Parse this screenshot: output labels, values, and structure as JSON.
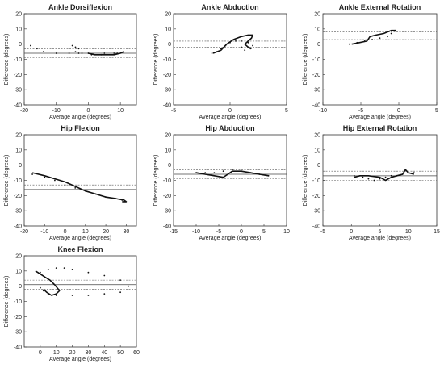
{
  "chart_data": [
    {
      "type": "scatter",
      "title": "Ankle Dorsiflexion",
      "xlabel": "Average angle (degrees)",
      "ylabel": "Difference (degrees)",
      "xlim": [
        -20,
        15
      ],
      "ylim": [
        -40,
        20
      ],
      "xticks": [
        -20,
        -10,
        0,
        10
      ],
      "yticks": [
        -40,
        -30,
        -20,
        -10,
        0,
        10,
        20
      ],
      "xticklabels": [
        "-20",
        "-10",
        "0",
        "10"
      ],
      "yticklabels": [
        "-40",
        "-30",
        "-20",
        "-10",
        "0",
        "10",
        "20"
      ],
      "reference_lines": {
        "solid": [
          -6
        ],
        "dashed": [
          -3,
          -9
        ]
      },
      "series": [
        {
          "style": "dotted",
          "points": [
            [
              -18,
              -1
            ],
            [
              -16,
              -3
            ],
            [
              -14,
              -5
            ],
            [
              -10,
              -6
            ],
            [
              -6,
              -6
            ],
            [
              -3,
              -6
            ],
            [
              0,
              -6
            ],
            [
              5,
              -6
            ],
            [
              9,
              -6
            ]
          ]
        },
        {
          "style": "dotted",
          "points": [
            [
              -5,
              -1
            ],
            [
              -4,
              -2
            ],
            [
              -3,
              -3
            ],
            [
              -4,
              -5
            ],
            [
              -2,
              -6
            ],
            [
              1,
              -7
            ],
            [
              4,
              -7
            ],
            [
              8,
              -6
            ]
          ]
        },
        {
          "style": "solid",
          "points": [
            [
              0,
              -6
            ],
            [
              2,
              -7
            ],
            [
              5,
              -7
            ],
            [
              8,
              -7
            ],
            [
              10,
              -6
            ],
            [
              11,
              -5
            ]
          ]
        }
      ]
    },
    {
      "type": "scatter",
      "title": "Ankle Abduction",
      "xlabel": "Average angle (degrees)",
      "ylabel": "Difference (degrees)",
      "xlim": [
        -5,
        5
      ],
      "ylim": [
        -40,
        20
      ],
      "xticks": [
        -5,
        0,
        5
      ],
      "yticks": [
        -40,
        -30,
        -20,
        -10,
        0,
        10,
        20
      ],
      "xticklabels": [
        "-5",
        "0",
        "5"
      ],
      "yticklabels": [
        "-40",
        "-30",
        "-20",
        "-10",
        "0",
        "10",
        "20"
      ],
      "reference_lines": {
        "solid": [
          0
        ],
        "dashed": [
          2,
          -2
        ]
      },
      "series": [
        {
          "style": "dotted",
          "points": [
            [
              -1.6,
              -6
            ],
            [
              -1.2,
              -5
            ],
            [
              -0.8,
              -3
            ],
            [
              -0.4,
              -1
            ],
            [
              0,
              1
            ],
            [
              0.5,
              2
            ],
            [
              1,
              2
            ],
            [
              1.6,
              1
            ],
            [
              2,
              -1
            ],
            [
              1.8,
              -3
            ],
            [
              1.3,
              -4
            ],
            [
              1,
              -2
            ]
          ]
        },
        {
          "style": "solid",
          "points": [
            [
              -1.5,
              -6
            ],
            [
              -0.8,
              -4
            ],
            [
              -0.3,
              0
            ],
            [
              0.3,
              3
            ],
            [
              1,
              5
            ],
            [
              1.6,
              6
            ],
            [
              2,
              6
            ],
            [
              1.9,
              4
            ],
            [
              1.6,
              2
            ],
            [
              1.3,
              0
            ],
            [
              1.6,
              -2
            ],
            [
              1.9,
              -3
            ]
          ]
        }
      ]
    },
    {
      "type": "scatter",
      "title": "Ankle External Rotation",
      "xlabel": "Average angle (degrees)",
      "ylabel": "Difference (degrees)",
      "xlim": [
        -10,
        5
      ],
      "ylim": [
        -40,
        20
      ],
      "xticks": [
        -10,
        -5,
        0,
        5
      ],
      "yticks": [
        -40,
        -30,
        -20,
        -10,
        0,
        10,
        20
      ],
      "xticklabels": [
        "-10",
        "-5",
        "0",
        "5"
      ],
      "yticklabels": [
        "-40",
        "-30",
        "-20",
        "-10",
        "0",
        "10",
        "20"
      ],
      "reference_lines": {
        "solid": [
          5.5
        ],
        "dashed": [
          8,
          3
        ]
      },
      "series": [
        {
          "style": "dotted",
          "points": [
            [
              -6.5,
              0
            ],
            [
              -5.5,
              1
            ],
            [
              -4.5,
              2
            ],
            [
              -3.5,
              3
            ],
            [
              -2.5,
              4
            ],
            [
              -1.5,
              5
            ],
            [
              -1,
              7
            ],
            [
              -0.5,
              9
            ]
          ]
        },
        {
          "style": "solid",
          "points": [
            [
              -6.2,
              0
            ],
            [
              -5.2,
              1
            ],
            [
              -4.2,
              2
            ],
            [
              -3.8,
              5
            ],
            [
              -3,
              6
            ],
            [
              -2,
              7
            ],
            [
              -1,
              9
            ],
            [
              -0.5,
              9
            ]
          ]
        }
      ]
    },
    {
      "type": "scatter",
      "title": "Hip Flexion",
      "xlabel": "Average angle (degrees)",
      "ylabel": "Difference (degrees)",
      "xlim": [
        -20,
        35
      ],
      "ylim": [
        -40,
        20
      ],
      "xticks": [
        -20,
        -10,
        0,
        10,
        20,
        30
      ],
      "yticks": [
        -40,
        -30,
        -20,
        -10,
        0,
        10,
        20
      ],
      "xticklabels": [
        "-20",
        "-10",
        "0",
        "10",
        "20",
        "30"
      ],
      "yticklabels": [
        "-40",
        "-30",
        "-20",
        "-10",
        "0",
        "10",
        "20"
      ],
      "reference_lines": {
        "solid": [
          -16
        ],
        "dashed": [
          -13,
          -19
        ]
      },
      "series": [
        {
          "style": "dotted",
          "points": [
            [
              -16,
              -6
            ],
            [
              -10,
              -8
            ],
            [
              -5,
              -10
            ],
            [
              0,
              -13
            ],
            [
              5,
              -15
            ],
            [
              10,
              -17
            ],
            [
              15,
              -19
            ],
            [
              20,
              -21
            ],
            [
              25,
              -22
            ],
            [
              28,
              -23
            ]
          ]
        },
        {
          "style": "solid",
          "points": [
            [
              -16,
              -5
            ],
            [
              -10,
              -7
            ],
            [
              -5,
              -9
            ],
            [
              0,
              -11
            ],
            [
              5,
              -14
            ],
            [
              10,
              -17
            ],
            [
              15,
              -19
            ],
            [
              20,
              -21
            ],
            [
              25,
              -22
            ],
            [
              29,
              -23
            ],
            [
              30,
              -24
            ],
            [
              28,
              -24
            ]
          ]
        }
      ]
    },
    {
      "type": "scatter",
      "title": "Hip Abduction",
      "xlabel": "Average angle (degrees)",
      "ylabel": "Difference (degrees)",
      "xlim": [
        -15,
        10
      ],
      "ylim": [
        -40,
        20
      ],
      "xticks": [
        -15,
        -10,
        -5,
        0,
        5,
        10
      ],
      "yticks": [
        -40,
        -30,
        -20,
        -10,
        0,
        10,
        20
      ],
      "xticklabels": [
        "-15",
        "-10",
        "-5",
        "0",
        "5",
        "10"
      ],
      "yticklabels": [
        "-40",
        "-30",
        "-20",
        "-10",
        "0",
        "10",
        "20"
      ],
      "reference_lines": {
        "solid": [
          -6
        ],
        "dashed": [
          -3,
          -9
        ]
      },
      "series": [
        {
          "style": "dotted",
          "points": [
            [
              -10,
              -5
            ],
            [
              -8,
              -5
            ],
            [
              -6,
              -5
            ],
            [
              -4,
              -4
            ],
            [
              -2,
              -3
            ],
            [
              0,
              -4
            ],
            [
              2,
              -5
            ],
            [
              4,
              -6
            ],
            [
              6,
              -7
            ]
          ]
        },
        {
          "style": "solid",
          "points": [
            [
              -10,
              -5
            ],
            [
              -8,
              -6
            ],
            [
              -6,
              -7
            ],
            [
              -4,
              -8
            ],
            [
              -3,
              -6
            ],
            [
              -2,
              -4
            ],
            [
              0,
              -4
            ],
            [
              2,
              -5
            ],
            [
              4,
              -6
            ],
            [
              6,
              -7
            ]
          ]
        }
      ]
    },
    {
      "type": "scatter",
      "title": "Hip External Rotation",
      "xlabel": "Average angle (degrees)",
      "ylabel": "Difference (degrees)",
      "xlim": [
        -5,
        15
      ],
      "ylim": [
        -40,
        20
      ],
      "xticks": [
        -5,
        0,
        5,
        10,
        15
      ],
      "yticks": [
        -40,
        -30,
        -20,
        -10,
        0,
        10,
        20
      ],
      "xticklabels": [
        "-5",
        "0",
        "5",
        "10",
        "15"
      ],
      "yticklabels": [
        "-40",
        "-30",
        "-20",
        "-10",
        "0",
        "10",
        "20"
      ],
      "reference_lines": {
        "solid": [
          -7
        ],
        "dashed": [
          -4,
          -10
        ]
      },
      "series": [
        {
          "style": "dotted",
          "points": [
            [
              0.5,
              -7
            ],
            [
              2,
              -8
            ],
            [
              3,
              -9
            ],
            [
              4,
              -10
            ],
            [
              5,
              -9
            ],
            [
              6,
              -8
            ],
            [
              7,
              -7
            ],
            [
              8,
              -7
            ],
            [
              9,
              -6
            ],
            [
              10,
              -5
            ],
            [
              11,
              -5
            ]
          ]
        },
        {
          "style": "solid",
          "points": [
            [
              0.5,
              -8
            ],
            [
              1.5,
              -7
            ],
            [
              3,
              -7
            ],
            [
              5,
              -8
            ],
            [
              6,
              -10
            ],
            [
              7,
              -8
            ],
            [
              8,
              -7
            ],
            [
              9,
              -6
            ],
            [
              9.5,
              -3
            ],
            [
              10,
              -5
            ],
            [
              11,
              -6
            ]
          ]
        }
      ]
    },
    {
      "type": "scatter",
      "title": "Knee Flexion",
      "xlabel": "Average angle (degrees)",
      "ylabel": "Difference (degrees)",
      "xlim": [
        -10,
        60
      ],
      "ylim": [
        -40,
        20
      ],
      "xticks": [
        0,
        10,
        20,
        30,
        40,
        50,
        60
      ],
      "yticks": [
        -40,
        -30,
        -20,
        -10,
        0,
        10,
        20
      ],
      "xticklabels": [
        "0",
        "10",
        "20",
        "30",
        "40",
        "50",
        "60"
      ],
      "yticklabels": [
        "-40",
        "-30",
        "-20",
        "-10",
        "0",
        "10",
        "20"
      ],
      "reference_lines": {
        "solid": [
          1
        ],
        "dashed": [
          4,
          -2
        ]
      },
      "series": [
        {
          "style": "dotted",
          "points": [
            [
              0,
              9
            ],
            [
              5,
              11
            ],
            [
              10,
              12
            ],
            [
              15,
              12
            ],
            [
              20,
              11
            ],
            [
              30,
              9
            ],
            [
              40,
              7
            ],
            [
              50,
              4
            ],
            [
              55,
              0
            ],
            [
              50,
              -4
            ],
            [
              40,
              -5
            ],
            [
              30,
              -6
            ],
            [
              20,
              -6
            ],
            [
              10,
              -6
            ],
            [
              5,
              -5
            ],
            [
              2,
              -3
            ],
            [
              0,
              -1
            ]
          ]
        },
        {
          "style": "solid",
          "points": [
            [
              -3,
              10
            ],
            [
              0,
              8
            ],
            [
              3,
              6
            ],
            [
              6,
              4
            ],
            [
              9,
              1
            ],
            [
              12,
              -3
            ],
            [
              10,
              -5
            ],
            [
              7,
              -6
            ],
            [
              4,
              -4
            ],
            [
              2,
              -2
            ]
          ]
        }
      ]
    }
  ]
}
